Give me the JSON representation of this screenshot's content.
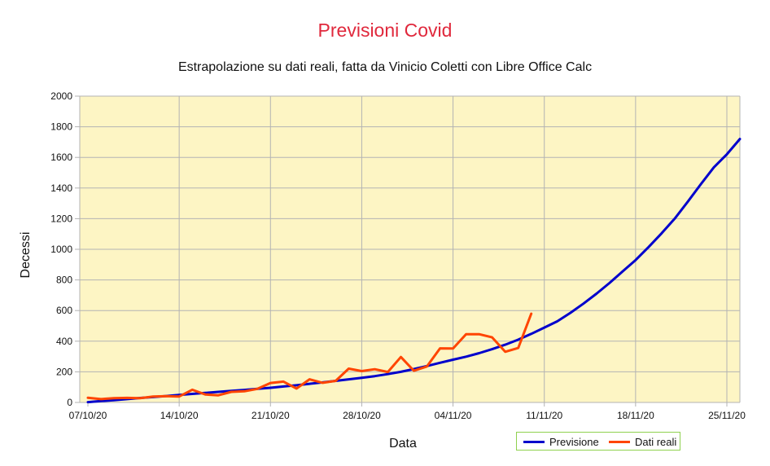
{
  "chart_data": {
    "type": "line",
    "title": "Previsioni Covid",
    "subtitle": "Estrapolazione su dati reali, fatta da Vinicio Coletti con Libre Office Calc",
    "xlabel": "Data",
    "ylabel": "Decessi",
    "ylim": [
      0,
      2000
    ],
    "yticks": [
      0,
      200,
      400,
      600,
      800,
      1000,
      1200,
      1400,
      1600,
      1800,
      2000
    ],
    "xticks": [
      "07/10/20",
      "14/10/20",
      "21/10/20",
      "28/10/20",
      "04/11/20",
      "11/11/20",
      "18/11/20",
      "25/11/20"
    ],
    "x_start": "07/10/20",
    "x_end": "26/11/20",
    "grid": true,
    "plot_background": "#fdf5c4",
    "legend_position": "bottom-right",
    "series": [
      {
        "name": "Previsione",
        "color": "#0000cc",
        "x": [
          "07/10/20",
          "08/10/20",
          "09/10/20",
          "10/10/20",
          "11/10/20",
          "12/10/20",
          "13/10/20",
          "14/10/20",
          "15/10/20",
          "16/10/20",
          "17/10/20",
          "18/10/20",
          "19/10/20",
          "20/10/20",
          "21/10/20",
          "22/10/20",
          "23/10/20",
          "24/10/20",
          "25/10/20",
          "26/10/20",
          "27/10/20",
          "28/10/20",
          "29/10/20",
          "30/10/20",
          "31/10/20",
          "01/11/20",
          "02/11/20",
          "03/11/20",
          "04/11/20",
          "05/11/20",
          "06/11/20",
          "07/11/20",
          "08/11/20",
          "09/11/20",
          "10/11/20",
          "11/11/20",
          "12/11/20",
          "13/11/20",
          "14/11/20",
          "15/11/20",
          "16/11/20",
          "17/11/20",
          "18/11/20",
          "19/11/20",
          "20/11/20",
          "21/11/20",
          "22/11/20",
          "23/11/20",
          "24/11/20",
          "25/11/20",
          "26/11/20"
        ],
        "values": [
          2,
          9,
          15,
          22,
          29,
          35,
          42,
          49,
          56,
          62,
          69,
          76,
          82,
          89,
          96,
          104,
          112,
          122,
          131,
          141,
          151,
          161,
          172,
          185,
          200,
          218,
          238,
          259,
          279,
          299,
          322,
          348,
          377,
          410,
          448,
          489,
          530,
          585,
          645,
          710,
          780,
          855,
          930,
          1015,
          1105,
          1200,
          1310,
          1425,
          1535,
          1620,
          1720
        ]
      },
      {
        "name": "Dati reali",
        "color": "#ff4500",
        "x": [
          "07/10/20",
          "08/10/20",
          "09/10/20",
          "10/10/20",
          "11/10/20",
          "12/10/20",
          "13/10/20",
          "14/10/20",
          "15/10/20",
          "16/10/20",
          "17/10/20",
          "18/10/20",
          "19/10/20",
          "20/10/20",
          "21/10/20",
          "22/10/20",
          "23/10/20",
          "24/10/20",
          "25/10/20",
          "26/10/20",
          "27/10/20",
          "28/10/20",
          "29/10/20",
          "30/10/20",
          "31/10/20",
          "01/11/20",
          "02/11/20",
          "03/11/20",
          "04/11/20",
          "05/11/20",
          "06/11/20",
          "07/11/20",
          "08/11/20",
          "09/11/20",
          "10/11/20"
        ],
        "values": [
          31,
          22,
          28,
          30,
          28,
          39,
          41,
          39,
          83,
          52,
          47,
          69,
          73,
          89,
          127,
          136,
          91,
          151,
          128,
          141,
          221,
          205,
          217,
          199,
          297,
          207,
          235,
          353,
          352,
          445,
          446,
          425,
          331,
          356,
          580
        ]
      }
    ]
  }
}
